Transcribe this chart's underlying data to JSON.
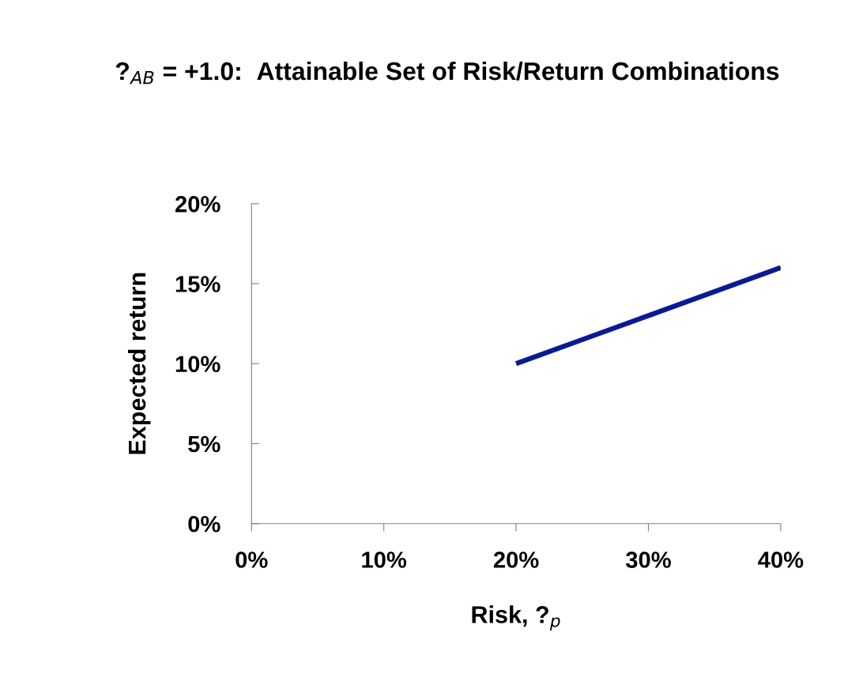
{
  "chart_data": {
    "type": "line",
    "title": "?$_{AB}$ = +1.0:  Attainable Set of Risk/Return Combinations",
    "xlabel": "Risk, ?$_{p}$",
    "ylabel": "Expected return",
    "x": [
      20,
      30,
      40
    ],
    "series": [
      {
        "color": "#0a1a94",
        "values": [
          10,
          13,
          16
        ]
      }
    ],
    "xlim": [
      0,
      40
    ],
    "xticks": [
      {
        "value": 0,
        "label": "0%"
      },
      {
        "value": 10,
        "label": "10%"
      },
      {
        "value": 20,
        "label": "20%"
      },
      {
        "value": 30,
        "label": "30%"
      },
      {
        "value": 40,
        "label": "40%"
      }
    ],
    "ylim": [
      0,
      20
    ],
    "yticks": [
      {
        "value": 0,
        "label": "0%"
      },
      {
        "value": 5,
        "label": "5%"
      },
      {
        "value": 10,
        "label": "10%"
      },
      {
        "value": 15,
        "label": "15%"
      },
      {
        "value": 20,
        "label": "20%"
      }
    ],
    "grid": false,
    "legend": false,
    "marker": "none",
    "line_style": "solid"
  }
}
